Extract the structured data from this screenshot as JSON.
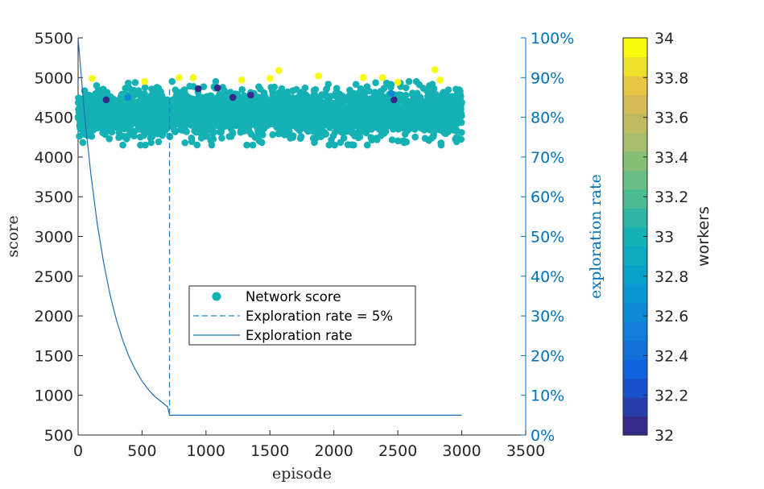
{
  "chart_data": {
    "type": "scatter",
    "xlabel": "episode",
    "ylabel": "score",
    "y2label": "exploration rate",
    "xlim": [
      0,
      3500
    ],
    "ylim": [
      500,
      5500
    ],
    "y2lim": [
      0,
      100
    ],
    "xticks": [
      "0",
      "500",
      "1000",
      "1500",
      "2000",
      "2500",
      "3000",
      "3500"
    ],
    "yticks": [
      "500",
      "1000",
      "1500",
      "2000",
      "2500",
      "3000",
      "3500",
      "4000",
      "4500",
      "5000",
      "5500"
    ],
    "y2ticks": [
      "0%",
      "10%",
      "20%",
      "30%",
      "40%",
      "50%",
      "60%",
      "70%",
      "80%",
      "90%",
      "100%"
    ],
    "colorbar": {
      "label": "workers",
      "range": [
        32,
        34
      ],
      "ticks": [
        "32",
        "32.2",
        "32.4",
        "32.6",
        "32.8",
        "33",
        "33.2",
        "33.4",
        "33.6",
        "33.8",
        "34"
      ],
      "colormap": "parula"
    },
    "grid": false,
    "legend": {
      "position": "center",
      "entries": [
        "Network score",
        "Exploration rate = 5%",
        "Exploration rate"
      ]
    },
    "series": [
      {
        "name": "Network score",
        "kind": "scatter",
        "x_range": [
          0,
          3000
        ],
        "episodes": 3000,
        "score_band": [
          4150,
          4950
        ],
        "score_mean": 4550,
        "typical_workers": 33,
        "color": "#13bfb5",
        "outliers": [
          {
            "x": 110,
            "y": 4990,
            "workers": 34
          },
          {
            "x": 520,
            "y": 4950,
            "workers": 34
          },
          {
            "x": 790,
            "y": 5000,
            "workers": 34
          },
          {
            "x": 900,
            "y": 5000,
            "workers": 34
          },
          {
            "x": 1280,
            "y": 4970,
            "workers": 34
          },
          {
            "x": 1500,
            "y": 4990,
            "workers": 34
          },
          {
            "x": 1570,
            "y": 5090,
            "workers": 34
          },
          {
            "x": 1880,
            "y": 5020,
            "workers": 34
          },
          {
            "x": 2230,
            "y": 5000,
            "workers": 34
          },
          {
            "x": 2380,
            "y": 5000,
            "workers": 34
          },
          {
            "x": 2500,
            "y": 4940,
            "workers": 34
          },
          {
            "x": 2790,
            "y": 5100,
            "workers": 34
          },
          {
            "x": 2830,
            "y": 4970,
            "workers": 34
          },
          {
            "x": 220,
            "y": 4720,
            "workers": 32
          },
          {
            "x": 940,
            "y": 4860,
            "workers": 32
          },
          {
            "x": 1090,
            "y": 4870,
            "workers": 32
          },
          {
            "x": 1210,
            "y": 4750,
            "workers": 32
          },
          {
            "x": 1350,
            "y": 4780,
            "workers": 32
          },
          {
            "x": 2470,
            "y": 4720,
            "workers": 32
          },
          {
            "x": 390,
            "y": 4750,
            "workers": 32.6
          },
          {
            "x": 2450,
            "y": 4800,
            "workers": 32.6
          }
        ]
      },
      {
        "name": "Exploration rate = 5%",
        "kind": "vline",
        "x": 715,
        "axis": "right",
        "dash": true,
        "color": "#1f82c2"
      },
      {
        "name": "Exploration rate",
        "kind": "line",
        "axis": "right",
        "x": [
          0,
          50,
          100,
          150,
          200,
          250,
          300,
          350,
          400,
          450,
          500,
          550,
          600,
          650,
          700,
          715,
          3000
        ],
        "y": [
          100,
          80.9,
          65.6,
          53.2,
          43.3,
          35.3,
          28.9,
          23.8,
          19.6,
          16.3,
          13.6,
          11.4,
          9.7,
          8.4,
          7.1,
          5,
          5
        ],
        "color": "#1f6fb0"
      }
    ]
  }
}
